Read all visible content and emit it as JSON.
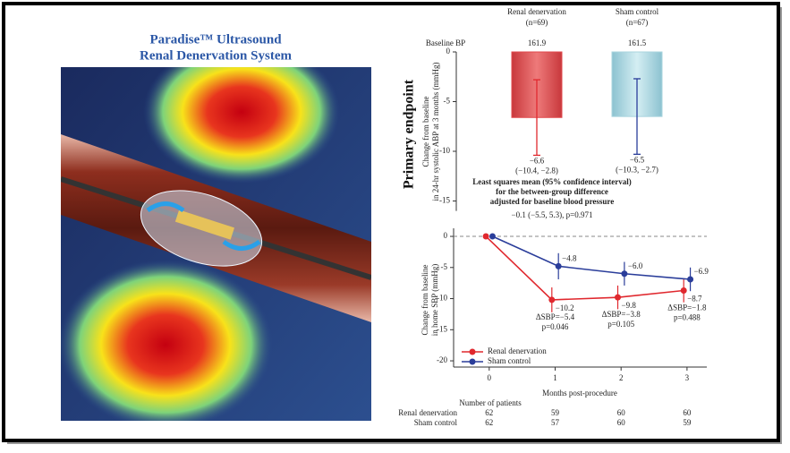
{
  "header": {
    "title_lines": [
      "Paradise™ Ultrasound",
      "Renal Denervation System"
    ]
  },
  "side_label": "Primary endpoint",
  "chart_data": [
    {
      "type": "bar",
      "y_label_lines": [
        "Change from baseline",
        "in 24-hr systolic ABP at 3 months (mmHg)"
      ],
      "categories": [
        "Renal denervation",
        "Sham control"
      ],
      "category_notes": [
        "(n=69)",
        "(n=67)"
      ],
      "baseline_label": "Baseline BP",
      "baseline_values": [
        161.9,
        161.5
      ],
      "values": [
        -6.6,
        -6.5
      ],
      "value_labels": [
        "−6.6",
        "−6.5"
      ],
      "ci_low": [
        -10.4,
        -10.3
      ],
      "ci_high": [
        -2.8,
        -2.7
      ],
      "ci_labels": [
        "(−10.4, −2.8)",
        "(−10.3, −2.7)"
      ],
      "colors": [
        "#e0484c",
        "#a9d4de"
      ],
      "label_colors": [
        "#e0282e",
        "#2a3d9a"
      ],
      "ylim": [
        -16,
        0
      ],
      "yticks": [
        0,
        -5,
        -10,
        -15
      ],
      "annotation_lines": [
        "Least squares mean (95% confidence interval)",
        "for the between-group difference",
        "adjusted for baseline blood pressure"
      ],
      "annotation_result": "−0.1 (−5.5, 5.3), p=0.971"
    },
    {
      "type": "line",
      "y_label_lines": [
        "Change from baseline",
        "in home SBP (mmHg)"
      ],
      "x_label": "Months post-procedure",
      "x": [
        0,
        1,
        2,
        3
      ],
      "xlim": [
        -0.54,
        3.3
      ],
      "xticks": [
        0,
        1,
        2,
        3
      ],
      "ylim": [
        -21,
        1.3
      ],
      "yticks": [
        0,
        -5,
        -10,
        -15,
        -20
      ],
      "zero_line": "dashed",
      "legend": "lower left",
      "series": [
        {
          "name": "Renal denervation",
          "color": "#e0282e",
          "values": [
            0,
            -10.2,
            -9.8,
            -8.7
          ],
          "value_labels": [
            null,
            "−10.2",
            "−9.8",
            "−8.7"
          ],
          "errors": [
            null,
            2.0,
            1.9,
            1.9
          ]
        },
        {
          "name": "Sham control",
          "color": "#2a3d9a",
          "values": [
            0,
            -4.8,
            -6.0,
            -6.9
          ],
          "value_labels": [
            null,
            "−4.8",
            "−6.0",
            "−6.9"
          ],
          "errors": [
            null,
            2.1,
            1.9,
            1.9
          ]
        }
      ],
      "annotations": [
        null,
        [
          "ΔSBP=−5.4",
          "p=0.046"
        ],
        [
          "ΔSBP=−3.8",
          "p=0.105"
        ],
        [
          "ΔSBP=−1.8",
          "p=0.488"
        ]
      ],
      "risk_table": {
        "title": "Number of patients",
        "rows": [
          {
            "name": "Renal denervation",
            "color": "#e0282e",
            "values": [
              62,
              59,
              60,
              60
            ]
          },
          {
            "name": "Sham control",
            "color": "#2a3d9a",
            "values": [
              62,
              57,
              60,
              59
            ]
          }
        ]
      }
    }
  ]
}
